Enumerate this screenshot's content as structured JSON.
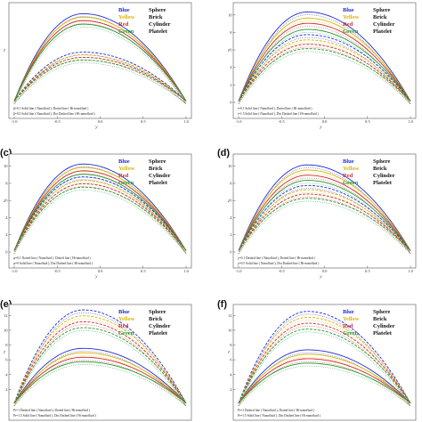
{
  "figure": {
    "colors": {
      "Blue": "#1f2bd6",
      "Yellow": "#d8b400",
      "Red": "#d3282a",
      "Green": "#1f9a2f"
    }
  },
  "chart_data": [
    {
      "type": "line",
      "panel": "",
      "xlabel": "y",
      "ylabel": "z",
      "x_ticks": [
        "-1.0",
        "-0.5",
        "0.0",
        "0.5",
        "1.0"
      ],
      "y_ticks": [],
      "xlim": [
        -1.0,
        1.0
      ],
      "legend": [
        {
          "color": "Blue",
          "shape": "Sphere"
        },
        {
          "color": "Yellow",
          "shape": "Brick"
        },
        {
          "color": "Red",
          "shape": "Cylinder"
        },
        {
          "color": "Green",
          "shape": "Platelet"
        }
      ],
      "annotations": [
        "β=0.1  Solid line ( Nanofluid ), Dotted line ( Hi-nanofluid )",
        "β=0.5  Solid line ( Nanofluid ), Dot Dashed line ( Hi-nanofluid )"
      ],
      "series": [
        {
          "color": "Blue",
          "style": "solid",
          "values_at_x0": 10.0
        },
        {
          "color": "Yellow",
          "style": "solid",
          "values_at_x0": 9.6
        },
        {
          "color": "Red",
          "style": "solid",
          "values_at_x0": 9.2
        },
        {
          "color": "Green",
          "style": "solid",
          "values_at_x0": 8.8
        },
        {
          "color": "Blue",
          "style": "dashed",
          "values_at_x0": 5.6
        },
        {
          "color": "Yellow",
          "style": "dashed",
          "values_at_x0": 5.3
        },
        {
          "color": "Red",
          "style": "dashed",
          "values_at_x0": 5.0
        },
        {
          "color": "Green",
          "style": "dashed",
          "values_at_x0": 4.7
        }
      ]
    },
    {
      "type": "line",
      "panel": "",
      "xlabel": "y",
      "ylabel": "z",
      "x_ticks": [
        "-1.0",
        "-0.5",
        "0.0",
        "0.5",
        "1.0"
      ],
      "y_ticks": [
        "0",
        "2",
        "4",
        "6",
        "8",
        "10"
      ],
      "xlim": [
        -1.0,
        1.0
      ],
      "ylim": [
        0,
        11
      ],
      "legend": [
        {
          "color": "Blue",
          "shape": "Sphere"
        },
        {
          "color": "Yellow",
          "shape": "Brick"
        },
        {
          "color": "Red",
          "shape": "Cylinder"
        },
        {
          "color": "Green",
          "shape": "Platelet"
        }
      ],
      "annotations": [
        "t=0.1  Solid line ( Nanofluid ), Dotted line ( Hi-nanofluid )",
        "t=1.5  Solid line ( Nanofluid ), Dot Dashed line ( Hi-nanofluid )"
      ],
      "series": [
        {
          "color": "Blue",
          "style": "solid",
          "values_at_x0": 10.2
        },
        {
          "color": "Yellow",
          "style": "solid",
          "values_at_x0": 9.5
        },
        {
          "color": "Red",
          "style": "solid",
          "values_at_x0": 8.9
        },
        {
          "color": "Green",
          "style": "solid",
          "values_at_x0": 8.2
        },
        {
          "color": "Blue",
          "style": "dashed",
          "values_at_x0": 7.6
        },
        {
          "color": "Yellow",
          "style": "dashed",
          "values_at_x0": 7.0
        },
        {
          "color": "Red",
          "style": "dashed",
          "values_at_x0": 6.5
        },
        {
          "color": "Green",
          "style": "dashed",
          "values_at_x0": 6.0
        }
      ]
    },
    {
      "type": "line",
      "panel": "(c)",
      "xlabel": "y",
      "ylabel": "z",
      "x_ticks": [
        "-1.0",
        "-0.5",
        "0.0",
        "0.5",
        "1.0"
      ],
      "y_ticks": [
        "0",
        "2",
        "4",
        "6",
        "8",
        "10"
      ],
      "xlim": [
        -1.0,
        1.0
      ],
      "ylim": [
        0,
        11
      ],
      "legend": [
        {
          "color": "Blue",
          "shape": "Sphere"
        },
        {
          "color": "Yellow",
          "shape": "Brick"
        },
        {
          "color": "Red",
          "shape": "Cylinder"
        },
        {
          "color": "Green",
          "shape": "Platelet"
        }
      ],
      "annotations": [
        "φ=0.1  Dotted line ( Nanofluid ), Dotted line ( Hi-nanofluid )",
        "φ=0  Solid line ( Nanofluid ), Dot Dashed line ( Hi-nanofluid )"
      ],
      "series": [
        {
          "color": "Blue",
          "style": "solid",
          "values_at_x0": 10.1
        },
        {
          "color": "Yellow",
          "style": "solid",
          "values_at_x0": 9.7
        },
        {
          "color": "Red",
          "style": "solid",
          "values_at_x0": 9.3
        },
        {
          "color": "Green",
          "style": "solid",
          "values_at_x0": 8.9
        },
        {
          "color": "Blue",
          "style": "dashed",
          "values_at_x0": 8.6
        },
        {
          "color": "Yellow",
          "style": "dashed",
          "values_at_x0": 8.2
        },
        {
          "color": "Red",
          "style": "dashed",
          "values_at_x0": 7.8
        },
        {
          "color": "Green",
          "style": "dashed",
          "values_at_x0": 7.4
        }
      ]
    },
    {
      "type": "line",
      "panel": "(d)",
      "xlabel": "y",
      "ylabel": "z",
      "x_ticks": [
        "-1.0",
        "-0.5",
        "0.0",
        "0.5",
        "1.0"
      ],
      "y_ticks": [
        "0",
        "2",
        "4",
        "6",
        "8",
        "10"
      ],
      "xlim": [
        -1.0,
        1.0
      ],
      "ylim": [
        0,
        11
      ],
      "legend": [
        {
          "color": "Blue",
          "shape": "Sphere"
        },
        {
          "color": "Yellow",
          "shape": "Brick"
        },
        {
          "color": "Red",
          "shape": "Cylinder"
        },
        {
          "color": "Green",
          "shape": "Platelet"
        }
      ],
      "annotations": [
        "γ=0.1  Dashed line ( Nanofluid ), Dotted line ( Hi-nanofluid )",
        "γ=0.5  Solid line ( Nanofluid ), Dot Dashed line ( Hi-nanofluid )"
      ],
      "series": [
        {
          "color": "Blue",
          "style": "solid",
          "values_at_x0": 10.0
        },
        {
          "color": "Yellow",
          "style": "solid",
          "values_at_x0": 9.4
        },
        {
          "color": "Red",
          "style": "solid",
          "values_at_x0": 8.8
        },
        {
          "color": "Green",
          "style": "solid",
          "values_at_x0": 8.2
        },
        {
          "color": "Blue",
          "style": "dashed",
          "values_at_x0": 7.6
        },
        {
          "color": "Yellow",
          "style": "dashed",
          "values_at_x0": 7.1
        },
        {
          "color": "Red",
          "style": "dashed",
          "values_at_x0": 6.6
        },
        {
          "color": "Green",
          "style": "dashed",
          "values_at_x0": 6.1
        }
      ]
    },
    {
      "type": "line",
      "panel": "(e)",
      "xlabel": "",
      "ylabel": "z",
      "x_ticks": [],
      "y_ticks": [
        "2",
        "4",
        "6",
        "8",
        "10",
        "12"
      ],
      "xlim": [
        -1.0,
        1.0
      ],
      "ylim": [
        0,
        13
      ],
      "legend": [
        {
          "color": "Blue",
          "shape": "Sphere"
        },
        {
          "color": "Yellow",
          "shape": "Brick"
        },
        {
          "color": "Red",
          "shape": "Cylinder"
        },
        {
          "color": "Green",
          "shape": "Platelet"
        }
      ],
      "annotations": [
        "Pr=1  Dashed line ( Nanofluid ), Dotted line ( Hi-nanofluid )",
        "Pr=1.5  Solid line ( Nanofluid ), Dot Dashed line ( Hi-nanofluid )"
      ],
      "series": [
        {
          "color": "Blue",
          "style": "dashed",
          "values_at_x0": 12.6
        },
        {
          "color": "Yellow",
          "style": "dashed",
          "values_at_x0": 11.8
        },
        {
          "color": "Red",
          "style": "dashed",
          "values_at_x0": 11.0
        },
        {
          "color": "Green",
          "style": "dashed",
          "values_at_x0": 10.2
        },
        {
          "color": "Blue",
          "style": "solid",
          "values_at_x0": 7.4
        },
        {
          "color": "Yellow",
          "style": "solid",
          "values_at_x0": 6.8
        },
        {
          "color": "Red",
          "style": "solid",
          "values_at_x0": 6.2
        },
        {
          "color": "Green",
          "style": "solid",
          "values_at_x0": 5.6
        }
      ]
    },
    {
      "type": "line",
      "panel": "(f)",
      "xlabel": "",
      "ylabel": "z",
      "x_ticks": [],
      "y_ticks": [
        "2",
        "4",
        "6",
        "8",
        "10",
        "12"
      ],
      "xlim": [
        -1.0,
        1.0
      ],
      "ylim": [
        0,
        13
      ],
      "legend": [
        {
          "color": "Blue",
          "shape": "Sphere"
        },
        {
          "color": "Yellow",
          "shape": "Brick"
        },
        {
          "color": "Red",
          "shape": "Cylinder"
        },
        {
          "color": "Green",
          "shape": "Platelet"
        }
      ],
      "annotations": [
        "Pr=1  Dashed line ( Nanofluid ), Dotted line ( Hi-nanofluid )",
        "Pr=1.5  Solid line ( Nanofluid ), Dot Dashed line ( Hi-nanofluid )"
      ],
      "series": [
        {
          "color": "Blue",
          "style": "dashed",
          "values_at_x0": 12.4
        },
        {
          "color": "Yellow",
          "style": "dashed",
          "values_at_x0": 11.6
        },
        {
          "color": "Red",
          "style": "dashed",
          "values_at_x0": 10.8
        },
        {
          "color": "Green",
          "style": "dashed",
          "values_at_x0": 10.0
        },
        {
          "color": "Blue",
          "style": "solid",
          "values_at_x0": 7.2
        },
        {
          "color": "Yellow",
          "style": "solid",
          "values_at_x0": 6.6
        },
        {
          "color": "Red",
          "style": "solid",
          "values_at_x0": 6.0
        },
        {
          "color": "Green",
          "style": "solid",
          "values_at_x0": 5.4
        }
      ]
    }
  ]
}
